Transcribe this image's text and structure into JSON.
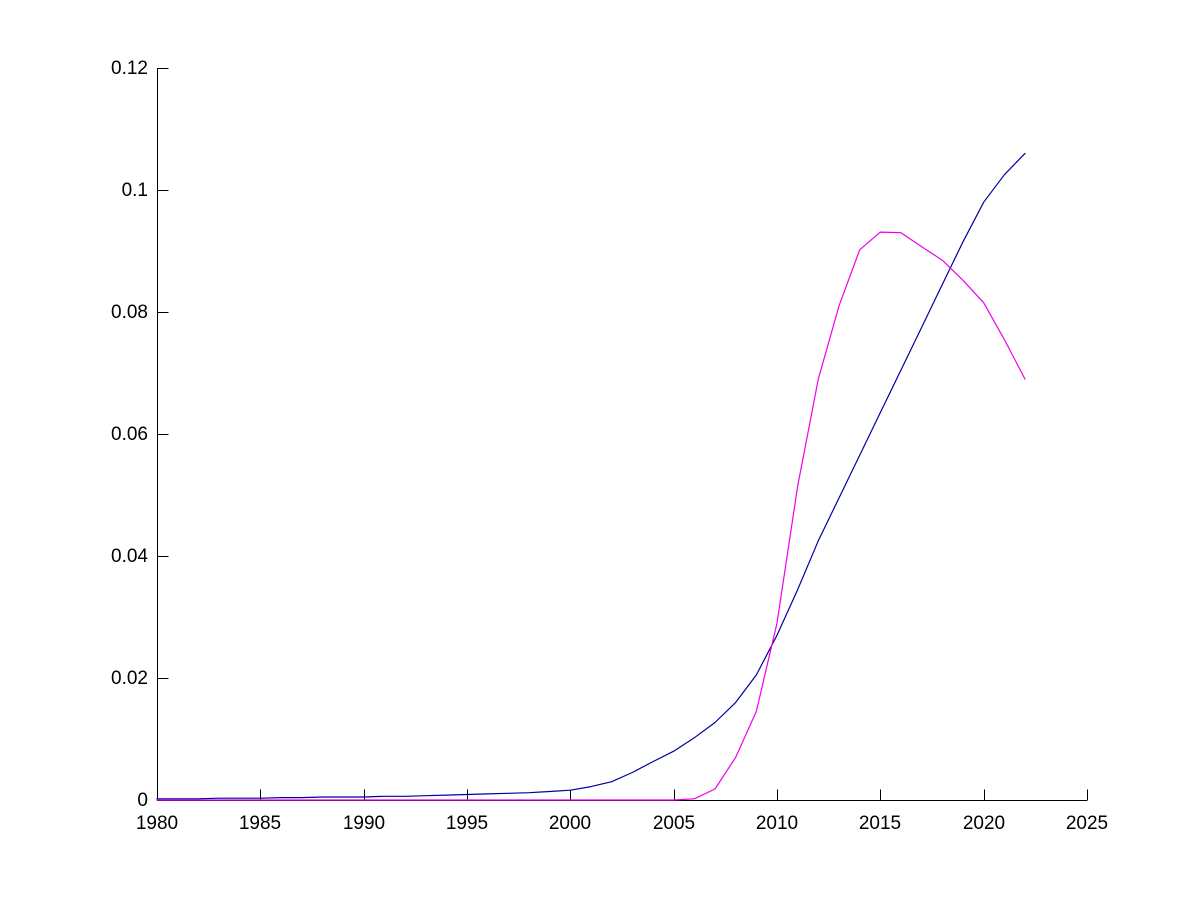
{
  "figure": {
    "background": "#FFFFFF",
    "axis_color": "#000000",
    "tick_length": 11
  },
  "chart_data": {
    "type": "line",
    "title": "",
    "xlabel": "",
    "ylabel": "",
    "grid": false,
    "legend": null,
    "xlim": [
      1980,
      2025
    ],
    "ylim": [
      0,
      0.12
    ],
    "x_ticks": [
      1980,
      1985,
      1990,
      1995,
      2000,
      2005,
      2010,
      2015,
      2020,
      2025
    ],
    "x_tick_labels": [
      "1980",
      "1985",
      "1990",
      "1995",
      "2000",
      "2005",
      "2010",
      "2015",
      "2020",
      "2025"
    ],
    "y_ticks": [
      0,
      0.02,
      0.04,
      0.06,
      0.08,
      0.1,
      0.12
    ],
    "y_tick_labels": [
      "0",
      "0.02",
      "0.04",
      "0.06",
      "0.08",
      "0.1",
      "0.12"
    ],
    "x": [
      1980,
      1981,
      1982,
      1983,
      1984,
      1985,
      1986,
      1987,
      1988,
      1989,
      1990,
      1991,
      1992,
      1993,
      1994,
      1995,
      1996,
      1997,
      1998,
      1999,
      2000,
      2001,
      2002,
      2003,
      2004,
      2005,
      2006,
      2007,
      2008,
      2009,
      2010,
      2011,
      2012,
      2013,
      2014,
      2015,
      2016,
      2017,
      2018,
      2019,
      2020,
      2021,
      2022
    ],
    "series": [
      {
        "name": "blue-series",
        "color": "#0000A0",
        "values": [
          0.0002,
          0.0002,
          0.0002,
          0.0003,
          0.0003,
          0.0003,
          0.0004,
          0.0004,
          0.0005,
          0.0005,
          0.0005,
          0.0006,
          0.0006,
          0.0007,
          0.0008,
          0.0009,
          0.001,
          0.0011,
          0.0012,
          0.0014,
          0.0016,
          0.0022,
          0.003,
          0.0045,
          0.0063,
          0.008,
          0.0102,
          0.0127,
          0.016,
          0.0205,
          0.027,
          0.0345,
          0.0425,
          0.0495,
          0.0565,
          0.0635,
          0.0705,
          0.0775,
          0.0845,
          0.0915,
          0.098,
          0.1025,
          0.106
        ]
      },
      {
        "name": "magenta-series",
        "color": "#EE00EE",
        "values": [
          0,
          0,
          0,
          0,
          0,
          0,
          0,
          0,
          0,
          0,
          0,
          0,
          0,
          0,
          0,
          0,
          0,
          0,
          0,
          0,
          0,
          0,
          0,
          0,
          0,
          0,
          0.0002,
          0.0018,
          0.007,
          0.0145,
          0.029,
          0.0515,
          0.069,
          0.081,
          0.0902,
          0.0931,
          0.093,
          0.0907,
          0.0885,
          0.0852,
          0.0815,
          0.0755,
          0.069
        ]
      }
    ]
  }
}
